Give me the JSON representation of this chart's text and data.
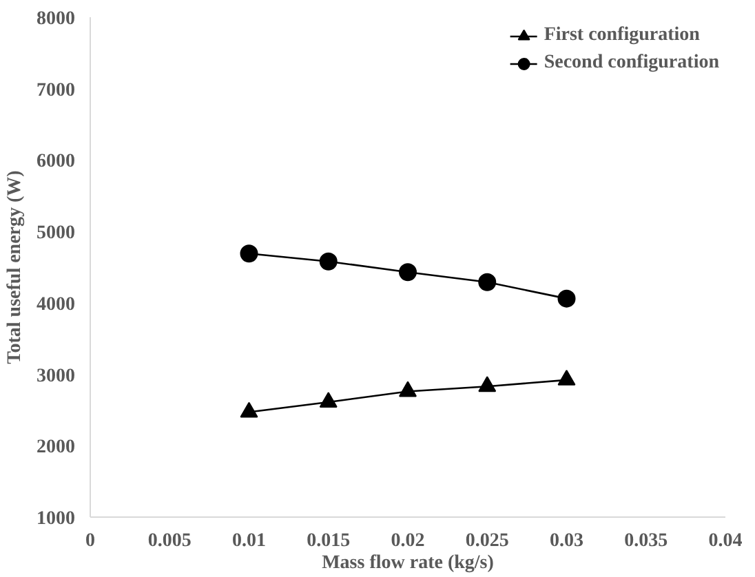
{
  "chart_data": {
    "type": "line",
    "xlabel": "Mass flow rate (kg/s)",
    "ylabel": "Total useful energy (W)",
    "x": [
      0.01,
      0.015,
      0.02,
      0.025,
      0.03
    ],
    "series": [
      {
        "name": "First configuration",
        "color": "#000000",
        "marker": "triangle",
        "values": [
          2470,
          2610,
          2760,
          2830,
          2920
        ]
      },
      {
        "name": "Second configuration",
        "color": "#000000",
        "marker": "circle",
        "values": [
          4690,
          4580,
          4430,
          4290,
          4060
        ]
      }
    ],
    "xlim": [
      0,
      0.04
    ],
    "xticks": [
      0,
      0.005,
      0.01,
      0.015,
      0.02,
      0.025,
      0.03,
      0.035,
      0.04
    ],
    "ylim": [
      1000,
      8000
    ],
    "yticks": [
      1000,
      2000,
      3000,
      4000,
      5000,
      6000,
      7000,
      8000
    ],
    "grid": false,
    "legend": "top right",
    "line_style": "solid"
  }
}
